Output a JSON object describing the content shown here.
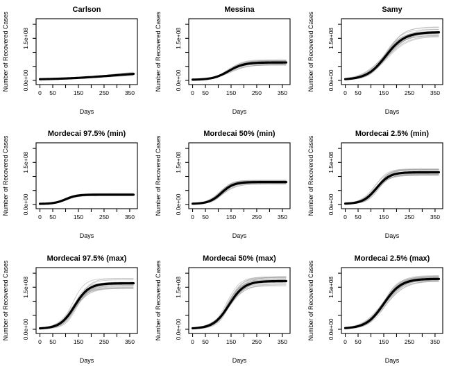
{
  "figure": {
    "background": "#ffffff",
    "axis_color": "#000000",
    "curve_color": "#000000",
    "ensemble_color": "#a6a6a6"
  },
  "chart_data": {
    "type": "line",
    "layout": "3x3-grid",
    "xlabel": "Days",
    "ylabel": "Number of Recovered Cases",
    "xlim": [
      -15,
      380
    ],
    "ylim_e8": [
      -0.15,
      2.2
    ],
    "x_ticks": [
      0,
      50,
      100,
      150,
      200,
      250,
      300,
      350
    ],
    "x_tick_labels": [
      "0",
      "50",
      "",
      "150",
      "",
      "250",
      "",
      "350"
    ],
    "y_ticks_e8": [
      0,
      0.5,
      1.0,
      1.5,
      2.0
    ],
    "y_tick_labels": [
      "0.0e+00",
      "",
      "",
      "1.5e+08",
      ""
    ],
    "grid": false,
    "legend": false,
    "units": "cases, 1e8 = 1.0e+08",
    "x_sample_days": [
      0,
      50,
      100,
      150,
      200,
      250,
      300,
      350
    ],
    "panels": [
      {
        "title": "Carlson",
        "values_e8": [
          0.04,
          0.05,
          0.07,
          0.09,
          0.12,
          0.15,
          0.19,
          0.22
        ],
        "model": {
          "base": 0.02,
          "K": 0.32,
          "t0": 290,
          "s": 110
        },
        "band_e8": 0.09
      },
      {
        "title": "Messina",
        "values_e8": [
          0.03,
          0.05,
          0.15,
          0.38,
          0.57,
          0.62,
          0.64,
          0.64
        ],
        "model": {
          "base": 0.02,
          "K": 0.62,
          "t0": 140,
          "s": 30
        },
        "band_e8": 0.1
      },
      {
        "title": "Samy",
        "values_e8": [
          0.03,
          0.11,
          0.31,
          0.78,
          1.31,
          1.59,
          1.68,
          1.71
        ],
        "model": {
          "base": 0.02,
          "K": 1.7,
          "t0": 158,
          "s": 37
        },
        "band_e8": 0.2
      },
      {
        "title": "Mordecai 97.5% (min)",
        "values_e8": [
          0.02,
          0.05,
          0.19,
          0.32,
          0.35,
          0.35,
          0.35,
          0.35
        ],
        "model": {
          "base": 0.02,
          "K": 0.33,
          "t0": 100,
          "s": 22
        },
        "band_e8": 0.05
      },
      {
        "title": "Mordecai 50% (min)",
        "values_e8": [
          0.03,
          0.07,
          0.31,
          0.67,
          0.78,
          0.8,
          0.8,
          0.8
        ],
        "model": {
          "base": 0.02,
          "K": 0.78,
          "t0": 112,
          "s": 24
        },
        "band_e8": 0.08
      },
      {
        "title": "Mordecai 2.5% (min)",
        "values_e8": [
          0.03,
          0.09,
          0.36,
          0.86,
          1.1,
          1.14,
          1.15,
          1.15
        ],
        "model": {
          "base": 0.02,
          "K": 1.13,
          "t0": 122,
          "s": 26
        },
        "band_e8": 0.13
      },
      {
        "title": "Mordecai 97.5% (max)",
        "values_e8": [
          0.03,
          0.09,
          0.38,
          1.04,
          1.5,
          1.61,
          1.63,
          1.64
        ],
        "model": {
          "base": 0.02,
          "K": 1.62,
          "t0": 135,
          "s": 28
        },
        "band_e8": 0.2
      },
      {
        "title": "Mordecai 50% (max)",
        "values_e8": [
          0.03,
          0.1,
          0.36,
          0.98,
          1.5,
          1.68,
          1.71,
          1.72
        ],
        "model": {
          "base": 0.02,
          "K": 1.7,
          "t0": 142,
          "s": 30
        },
        "band_e8": 0.18
      },
      {
        "title": "Mordecai 2.5% (max)",
        "values_e8": [
          0.03,
          0.11,
          0.35,
          0.91,
          1.47,
          1.71,
          1.78,
          1.8
        ],
        "model": {
          "base": 0.02,
          "K": 1.78,
          "t0": 150,
          "s": 34
        },
        "band_e8": 0.12
      }
    ]
  }
}
